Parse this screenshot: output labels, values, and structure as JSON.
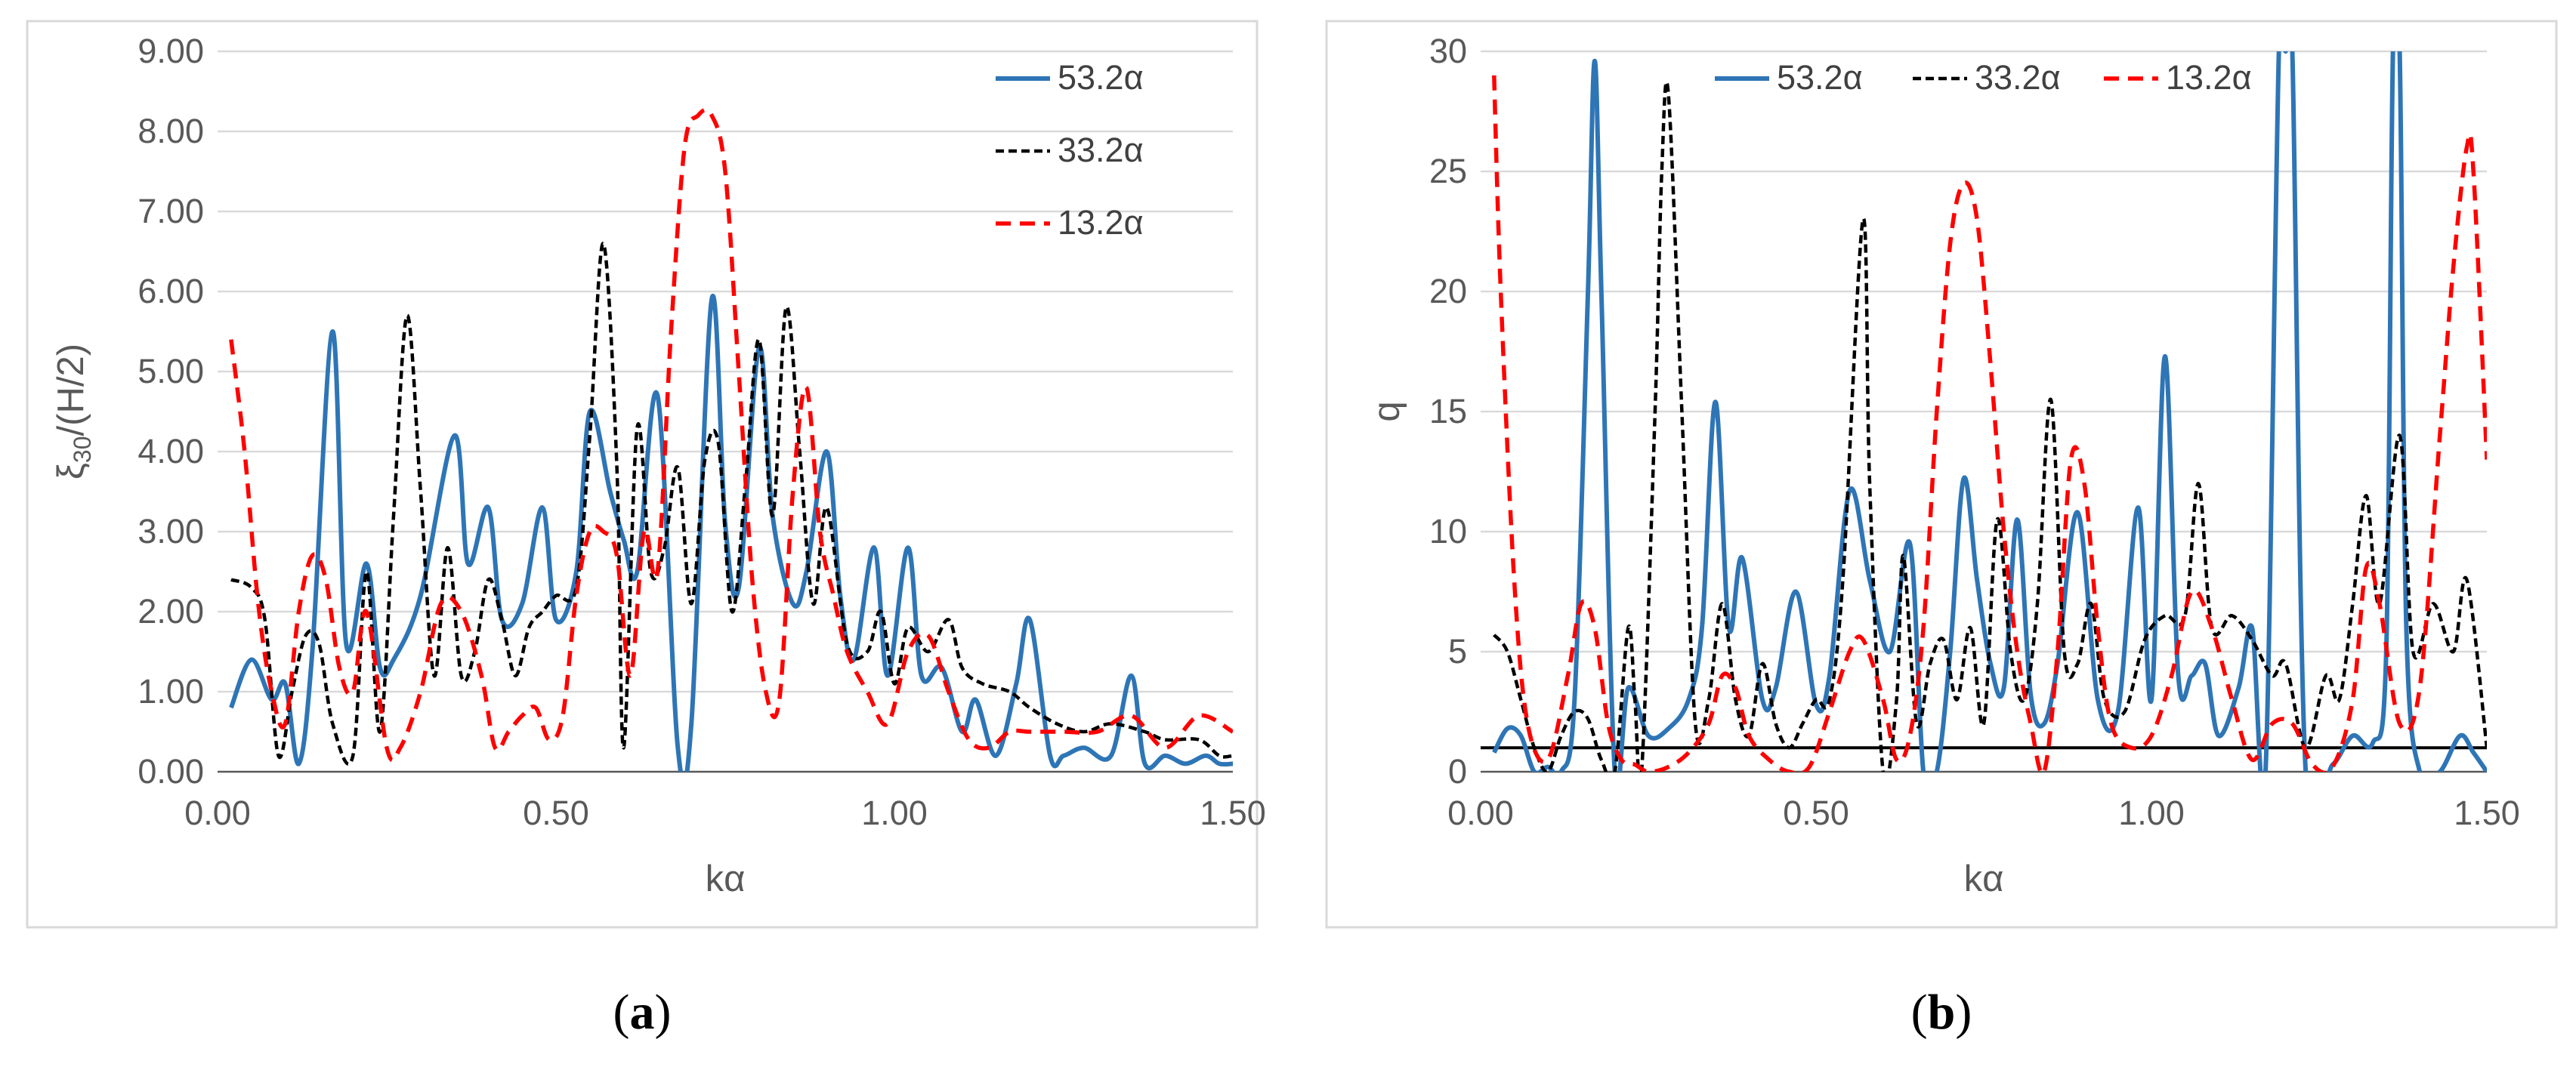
{
  "chart_data": [
    {
      "panel": "a",
      "type": "line",
      "caption": "(a)",
      "xlabel": "kα",
      "ylabel_base": "ξ",
      "ylabel_sub": "30",
      "ylabel_rest": "/(H/2)",
      "xlim": [
        0,
        1.5
      ],
      "ylim": [
        0,
        9
      ],
      "xticks": [
        0,
        0.5,
        1.0,
        1.5
      ],
      "xtick_labels": [
        "0.00",
        "0.50",
        "1.00",
        "1.50"
      ],
      "yticks": [
        0,
        1,
        2,
        3,
        4,
        5,
        6,
        7,
        8,
        9
      ],
      "ytick_labels": [
        "0.00",
        "1.00",
        "2.00",
        "3.00",
        "4.00",
        "5.00",
        "6.00",
        "7.00",
        "8.00",
        "9.00"
      ],
      "legend_position": "top-right",
      "legend_layout": "vertical",
      "series": [
        {
          "name": "53.2α",
          "color": "#2e75b6",
          "style": "solid",
          "x": [
            0.02,
            0.05,
            0.08,
            0.1,
            0.12,
            0.14,
            0.17,
            0.19,
            0.22,
            0.24,
            0.26,
            0.3,
            0.35,
            0.37,
            0.4,
            0.42,
            0.45,
            0.48,
            0.5,
            0.53,
            0.55,
            0.58,
            0.6,
            0.62,
            0.65,
            0.68,
            0.7,
            0.73,
            0.75,
            0.77,
            0.8,
            0.82,
            0.85,
            0.87,
            0.9,
            0.92,
            0.94,
            0.97,
            0.99,
            1.02,
            1.04,
            1.07,
            1.1,
            1.12,
            1.15,
            1.18,
            1.2,
            1.23,
            1.25,
            1.28,
            1.32,
            1.35,
            1.37,
            1.4,
            1.43,
            1.46,
            1.48,
            1.5
          ],
          "y": [
            0.8,
            1.4,
            0.9,
            1.1,
            0.1,
            1.5,
            5.5,
            1.6,
            2.6,
            1.3,
            1.4,
            2.2,
            4.2,
            2.6,
            3.3,
            1.9,
            2.1,
            3.3,
            1.9,
            2.5,
            4.5,
            3.5,
            2.9,
            2.5,
            4.7,
            0.3,
            0.6,
            5.9,
            3.1,
            2.3,
            5.3,
            3.2,
            2.1,
            2.5,
            4.0,
            2.2,
            1.4,
            2.8,
            1.2,
            2.8,
            1.2,
            1.3,
            0.5,
            0.9,
            0.2,
            1.1,
            1.9,
            0.2,
            0.2,
            0.3,
            0.2,
            1.2,
            0.1,
            0.2,
            0.1,
            0.2,
            0.1,
            0.1
          ]
        },
        {
          "name": "33.2α",
          "color": "#000000",
          "style": "dashed",
          "x": [
            0.02,
            0.05,
            0.07,
            0.09,
            0.11,
            0.13,
            0.15,
            0.17,
            0.2,
            0.22,
            0.24,
            0.26,
            0.28,
            0.3,
            0.32,
            0.34,
            0.36,
            0.38,
            0.4,
            0.42,
            0.44,
            0.46,
            0.48,
            0.5,
            0.53,
            0.55,
            0.57,
            0.59,
            0.6,
            0.62,
            0.64,
            0.66,
            0.68,
            0.7,
            0.72,
            0.74,
            0.76,
            0.78,
            0.8,
            0.82,
            0.84,
            0.86,
            0.88,
            0.9,
            0.93,
            0.96,
            0.98,
            1.0,
            1.02,
            1.05,
            1.08,
            1.1,
            1.13,
            1.17,
            1.2,
            1.24,
            1.28,
            1.32,
            1.37,
            1.4,
            1.45,
            1.48,
            1.5
          ],
          "y": [
            2.4,
            2.3,
            1.9,
            0.2,
            1.0,
            1.7,
            1.6,
            0.6,
            0.2,
            2.5,
            0.5,
            3.2,
            5.7,
            3.5,
            1.2,
            2.8,
            1.2,
            1.5,
            2.4,
            1.9,
            1.2,
            1.8,
            2.0,
            2.2,
            2.3,
            4.2,
            6.6,
            3.8,
            0.3,
            4.3,
            2.5,
            2.8,
            3.8,
            2.1,
            3.9,
            4.1,
            2.0,
            3.6,
            5.4,
            3.2,
            5.8,
            4.0,
            2.1,
            3.3,
            1.6,
            1.5,
            2.0,
            1.1,
            1.8,
            1.5,
            1.9,
            1.3,
            1.1,
            1.0,
            0.8,
            0.6,
            0.5,
            0.6,
            0.5,
            0.4,
            0.4,
            0.2,
            0.2
          ]
        },
        {
          "name": "13.2α",
          "color": "#ff0000",
          "style": "dashed",
          "x": [
            0.02,
            0.04,
            0.06,
            0.08,
            0.1,
            0.12,
            0.14,
            0.16,
            0.18,
            0.2,
            0.22,
            0.25,
            0.27,
            0.3,
            0.33,
            0.36,
            0.39,
            0.41,
            0.43,
            0.45,
            0.47,
            0.49,
            0.51,
            0.53,
            0.55,
            0.57,
            0.59,
            0.61,
            0.63,
            0.65,
            0.67,
            0.69,
            0.71,
            0.73,
            0.75,
            0.77,
            0.79,
            0.81,
            0.83,
            0.85,
            0.87,
            0.89,
            0.91,
            0.93,
            0.96,
            0.99,
            1.02,
            1.05,
            1.08,
            1.11,
            1.14,
            1.17,
            1.2,
            1.25,
            1.3,
            1.35,
            1.4,
            1.45,
            1.5
          ],
          "y": [
            5.4,
            4.0,
            2.1,
            1.0,
            0.6,
            2.0,
            2.7,
            2.4,
            1.3,
            1.0,
            2.0,
            0.3,
            0.3,
            1.0,
            2.1,
            2.0,
            1.2,
            0.3,
            0.5,
            0.7,
            0.8,
            0.4,
            0.7,
            2.2,
            3.0,
            3.0,
            2.7,
            1.2,
            3.0,
            2.5,
            5.5,
            7.8,
            8.2,
            8.2,
            7.5,
            5.0,
            2.4,
            1.0,
            0.9,
            3.5,
            4.8,
            3.0,
            2.2,
            1.5,
            1.0,
            0.6,
            1.5,
            1.7,
            1.0,
            0.4,
            0.3,
            0.5,
            0.5,
            0.5,
            0.5,
            0.7,
            0.3,
            0.7,
            0.5
          ]
        }
      ]
    },
    {
      "panel": "b",
      "type": "line",
      "caption": "(b)",
      "xlabel": "kα",
      "ylabel": "q",
      "xlim": [
        0,
        1.5
      ],
      "ylim": [
        0,
        30
      ],
      "xticks": [
        0,
        0.5,
        1.0,
        1.5
      ],
      "xtick_labels": [
        "0.00",
        "0.50",
        "1.00",
        "1.50"
      ],
      "yticks": [
        0,
        5,
        10,
        15,
        20,
        25,
        30
      ],
      "ytick_labels": [
        "0",
        "5",
        "10",
        "15",
        "20",
        "25",
        "30"
      ],
      "legend_position": "top",
      "legend_layout": "horizontal",
      "reference_line": {
        "y": 1,
        "color": "#000000"
      },
      "series": [
        {
          "name": "53.2α",
          "color": "#2e75b6",
          "style": "solid",
          "x": [
            0.02,
            0.04,
            0.06,
            0.08,
            0.1,
            0.12,
            0.14,
            0.16,
            0.17,
            0.18,
            0.2,
            0.22,
            0.25,
            0.28,
            0.31,
            0.33,
            0.35,
            0.37,
            0.39,
            0.42,
            0.44,
            0.47,
            0.5,
            0.52,
            0.55,
            0.58,
            0.61,
            0.64,
            0.66,
            0.68,
            0.7,
            0.72,
            0.74,
            0.76,
            0.78,
            0.8,
            0.82,
            0.84,
            0.86,
            0.89,
            0.92,
            0.95,
            0.98,
            1.0,
            1.02,
            1.04,
            1.06,
            1.08,
            1.1,
            1.13,
            1.15,
            1.17,
            1.19,
            1.2,
            1.21,
            1.23,
            1.27,
            1.3,
            1.33,
            1.35,
            1.36,
            1.37,
            1.38,
            1.4,
            1.43,
            1.46,
            1.48,
            1.5
          ],
          "y": [
            0.8,
            1.8,
            1.5,
            0.0,
            0.2,
            0.0,
            3.0,
            20.0,
            29.6,
            20.0,
            0.0,
            3.5,
            1.5,
            1.8,
            3.0,
            6.0,
            15.4,
            6.0,
            8.9,
            3.0,
            3.5,
            7.5,
            2.8,
            4.0,
            11.7,
            8.0,
            5.0,
            9.5,
            0.0,
            0.0,
            5.0,
            12.2,
            8.0,
            4.5,
            3.5,
            10.5,
            3.2,
            2.0,
            4.5,
            10.8,
            3.0,
            2.5,
            11.0,
            3.0,
            17.3,
            4.0,
            4.0,
            4.5,
            1.5,
            3.5,
            6.0,
            0.0,
            30.0,
            30.0,
            30.0,
            0.0,
            0.3,
            1.5,
            1.2,
            5.0,
            30.0,
            30.0,
            6.0,
            0.0,
            0.0,
            1.5,
            0.8,
            0.0
          ]
        },
        {
          "name": "33.2α",
          "color": "#000000",
          "style": "dashed",
          "x": [
            0.02,
            0.04,
            0.06,
            0.08,
            0.1,
            0.12,
            0.14,
            0.16,
            0.18,
            0.2,
            0.22,
            0.23,
            0.24,
            0.26,
            0.27,
            0.28,
            0.3,
            0.32,
            0.34,
            0.36,
            0.38,
            0.4,
            0.42,
            0.44,
            0.46,
            0.48,
            0.5,
            0.52,
            0.54,
            0.57,
            0.58,
            0.6,
            0.62,
            0.63,
            0.65,
            0.67,
            0.69,
            0.71,
            0.73,
            0.75,
            0.77,
            0.79,
            0.81,
            0.83,
            0.85,
            0.87,
            0.89,
            0.91,
            0.93,
            0.96,
            0.99,
            1.02,
            1.05,
            1.07,
            1.09,
            1.12,
            1.15,
            1.18,
            1.2,
            1.23,
            1.26,
            1.28,
            1.3,
            1.32,
            1.34,
            1.37,
            1.39,
            1.42,
            1.45,
            1.47,
            1.5
          ],
          "y": [
            5.7,
            5.0,
            3.0,
            1.0,
            0.0,
            1.5,
            2.5,
            2.2,
            0.5,
            0.0,
            6.0,
            3.0,
            0.0,
            15.0,
            25.0,
            28.2,
            15.0,
            2.0,
            3.0,
            7.0,
            3.0,
            1.5,
            4.5,
            2.0,
            1.0,
            2.0,
            3.0,
            3.0,
            8.0,
            23.0,
            12.0,
            0.0,
            3.0,
            9.0,
            2.0,
            4.5,
            5.5,
            3.0,
            6.0,
            2.0,
            10.5,
            5.0,
            3.0,
            7.0,
            15.5,
            5.0,
            4.5,
            7.0,
            3.0,
            2.5,
            5.5,
            6.5,
            6.5,
            12.0,
            6.0,
            6.5,
            5.5,
            4.0,
            4.5,
            1.0,
            4.0,
            3.0,
            7.0,
            11.5,
            7.0,
            14.0,
            5.0,
            7.0,
            5.0,
            8.0,
            1.0
          ]
        },
        {
          "name": "13.2α",
          "color": "#ff0000",
          "style": "dashed",
          "x": [
            0.02,
            0.03,
            0.05,
            0.07,
            0.1,
            0.13,
            0.15,
            0.17,
            0.19,
            0.21,
            0.23,
            0.25,
            0.28,
            0.31,
            0.34,
            0.36,
            0.38,
            0.4,
            0.43,
            0.46,
            0.49,
            0.52,
            0.55,
            0.57,
            0.6,
            0.62,
            0.64,
            0.66,
            0.68,
            0.7,
            0.72,
            0.74,
            0.76,
            0.78,
            0.8,
            0.82,
            0.84,
            0.86,
            0.88,
            0.9,
            0.92,
            0.94,
            0.97,
            1.0,
            1.03,
            1.06,
            1.09,
            1.12,
            1.15,
            1.18,
            1.21,
            1.24,
            1.27,
            1.3,
            1.32,
            1.34,
            1.37,
            1.4,
            1.43,
            1.45,
            1.47,
            1.48,
            1.5
          ],
          "y": [
            29.0,
            20.0,
            8.0,
            2.0,
            0.5,
            4.0,
            7.0,
            6.0,
            2.0,
            0.5,
            0.3,
            0.0,
            0.2,
            0.8,
            2.0,
            4.0,
            3.5,
            1.5,
            0.5,
            0.0,
            0.2,
            2.5,
            5.0,
            5.5,
            3.0,
            0.5,
            1.5,
            6.0,
            15.0,
            22.0,
            24.5,
            23.0,
            17.0,
            10.0,
            5.0,
            2.0,
            0.0,
            5.0,
            13.0,
            12.0,
            6.0,
            2.0,
            1.0,
            1.5,
            4.0,
            7.5,
            6.0,
            3.0,
            0.5,
            2.0,
            2.0,
            0.3,
            0.2,
            3.0,
            8.5,
            7.0,
            2.0,
            3.5,
            14.0,
            21.0,
            26.0,
            25.0,
            13.0
          ]
        }
      ]
    }
  ]
}
